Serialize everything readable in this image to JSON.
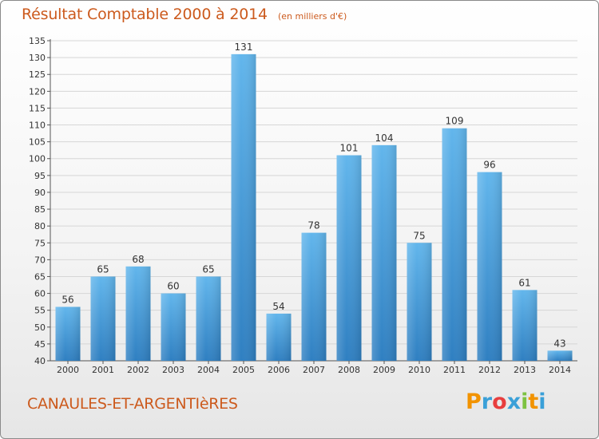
{
  "title": "Résultat Comptable 2000 à 2014",
  "subtitle": "(en milliers d'€)",
  "commune": "CANAULES-ET-ARGENTIèRES",
  "logo_letters": [
    "P",
    "r",
    "o",
    "x",
    "i",
    "t",
    "i"
  ],
  "logo_colors": [
    "#f29300",
    "#3aa0d8",
    "#e83e3e",
    "#3aa0d8",
    "#7dc242",
    "#f29300",
    "#3aa0d8"
  ],
  "colors": {
    "bar_top": "#62b6ec",
    "bar_bottom": "#2f7fc1",
    "accent_text": "#cc5a1d"
  },
  "chart_data": {
    "type": "bar",
    "categories": [
      "2000",
      "2001",
      "2002",
      "2003",
      "2004",
      "2005",
      "2006",
      "2007",
      "2008",
      "2009",
      "2010",
      "2011",
      "2012",
      "2013",
      "2014"
    ],
    "values": [
      56,
      65,
      68,
      60,
      65,
      131,
      54,
      78,
      101,
      104,
      75,
      109,
      96,
      61,
      43
    ],
    "ylim": [
      40,
      135
    ],
    "yticks": [
      40,
      45,
      50,
      55,
      60,
      65,
      70,
      75,
      80,
      85,
      90,
      95,
      100,
      105,
      110,
      115,
      120,
      125,
      130,
      135
    ],
    "grid": true,
    "data_labels": true
  }
}
